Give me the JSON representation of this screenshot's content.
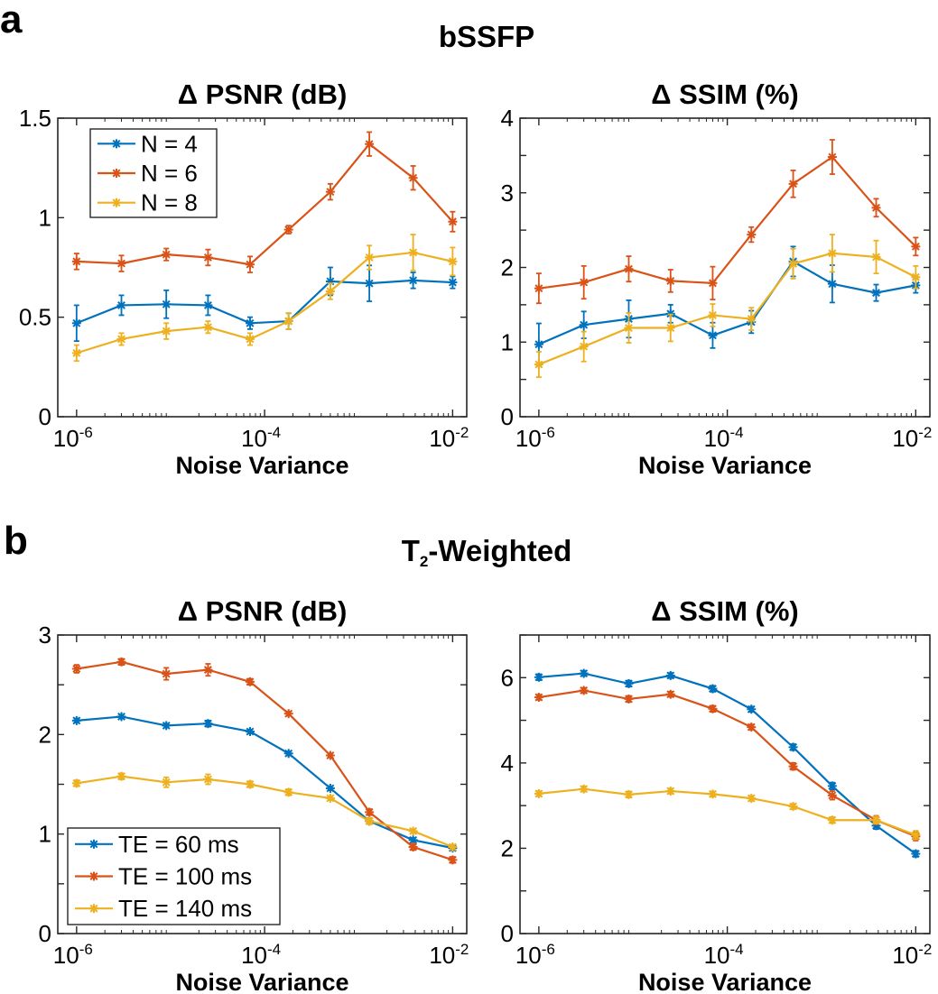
{
  "panels": {
    "a": {
      "letter": "a",
      "title": "bSSFP",
      "title_sub": "",
      "title_rest": ""
    },
    "b": {
      "letter": "b",
      "title": "T",
      "title_sub": "2",
      "title_rest": "-Weighted"
    }
  },
  "colors": {
    "blue": "#0072BD",
    "orange": "#D95319",
    "yellow": "#EDB120"
  },
  "chart_data": [
    {
      "id": "a_psnr",
      "panel": "a",
      "type": "line",
      "title": "Δ PSNR (dB)",
      "xlabel": "Noise Variance",
      "ylabel": "",
      "xscale": "log",
      "x": [
        1e-06,
        3e-06,
        9e-06,
        2.5e-05,
        7e-05,
        0.00018,
        0.0005,
        0.0013,
        0.0038,
        0.01
      ],
      "xlim_exp": [
        -6.2,
        -1.85
      ],
      "xticks": [
        {
          "base": "10",
          "exp": "-6"
        },
        {
          "base": "10",
          "exp": "-4"
        },
        {
          "base": "10",
          "exp": "-2"
        }
      ],
      "xtick_exps": [
        -6,
        -4,
        -2
      ],
      "ylim": [
        0,
        1.5
      ],
      "yticks": [
        0,
        0.5,
        1,
        1.5
      ],
      "ytick_labels": [
        "0",
        "0.5",
        "1",
        "1.5"
      ],
      "minor_yticks": [],
      "legend": {
        "position": "top-left"
      },
      "series": [
        {
          "name": "N = 4",
          "color": "#0072BD",
          "values": [
            0.47,
            0.56,
            0.565,
            0.56,
            0.47,
            0.48,
            0.68,
            0.67,
            0.685,
            0.675
          ],
          "errors": [
            0.09,
            0.05,
            0.07,
            0.05,
            0.03,
            0.04,
            0.07,
            0.09,
            0.04,
            0.03
          ]
        },
        {
          "name": "N = 6",
          "color": "#D95319",
          "values": [
            0.78,
            0.77,
            0.815,
            0.8,
            0.765,
            0.94,
            1.13,
            1.37,
            1.2,
            0.98
          ],
          "errors": [
            0.04,
            0.04,
            0.03,
            0.04,
            0.04,
            0.02,
            0.04,
            0.06,
            0.06,
            0.05
          ]
        },
        {
          "name": "N = 8",
          "color": "#EDB120",
          "values": [
            0.32,
            0.39,
            0.43,
            0.45,
            0.39,
            0.48,
            0.63,
            0.8,
            0.825,
            0.78
          ],
          "errors": [
            0.04,
            0.03,
            0.04,
            0.03,
            0.03,
            0.04,
            0.04,
            0.06,
            0.09,
            0.07
          ]
        }
      ]
    },
    {
      "id": "a_ssim",
      "panel": "a",
      "type": "line",
      "title": "Δ SSIM (%)",
      "xlabel": "Noise Variance",
      "ylabel": "",
      "xscale": "log",
      "x": [
        1e-06,
        3e-06,
        9e-06,
        2.5e-05,
        7e-05,
        0.00018,
        0.0005,
        0.0013,
        0.0038,
        0.01
      ],
      "xlim_exp": [
        -6.2,
        -1.85
      ],
      "xticks": [
        {
          "base": "10",
          "exp": "-6"
        },
        {
          "base": "10",
          "exp": "-4"
        },
        {
          "base": "10",
          "exp": "-2"
        }
      ],
      "xtick_exps": [
        -6,
        -4,
        -2
      ],
      "ylim": [
        0,
        4
      ],
      "yticks": [
        0,
        1,
        2,
        3,
        4
      ],
      "ytick_labels": [
        "0",
        "1",
        "2",
        "3",
        "4"
      ],
      "minor_yticks": [
        0.5,
        1.5,
        2.5,
        3.5
      ],
      "legend": null,
      "series": [
        {
          "name": "N = 4",
          "color": "#0072BD",
          "values": [
            0.97,
            1.23,
            1.31,
            1.38,
            1.09,
            1.27,
            2.08,
            1.78,
            1.66,
            1.76
          ],
          "errors": [
            0.28,
            0.18,
            0.25,
            0.12,
            0.17,
            0.15,
            0.2,
            0.25,
            0.11,
            0.1
          ]
        },
        {
          "name": "N = 6",
          "color": "#D95319",
          "values": [
            1.72,
            1.8,
            1.98,
            1.82,
            1.79,
            2.44,
            3.12,
            3.48,
            2.8,
            2.28
          ],
          "errors": [
            0.2,
            0.22,
            0.17,
            0.15,
            0.22,
            0.1,
            0.18,
            0.23,
            0.12,
            0.12
          ]
        },
        {
          "name": "N = 8",
          "color": "#EDB120",
          "values": [
            0.7,
            0.94,
            1.19,
            1.19,
            1.36,
            1.31,
            2.05,
            2.19,
            2.14,
            1.87
          ],
          "errors": [
            0.17,
            0.2,
            0.2,
            0.18,
            0.15,
            0.15,
            0.2,
            0.25,
            0.22,
            0.15
          ]
        }
      ]
    },
    {
      "id": "b_psnr",
      "panel": "b",
      "type": "line",
      "title": "Δ PSNR (dB)",
      "xlabel": "Noise Variance",
      "ylabel": "",
      "xscale": "log",
      "x": [
        1e-06,
        3e-06,
        9e-06,
        2.5e-05,
        7e-05,
        0.00018,
        0.0005,
        0.0013,
        0.0038,
        0.01
      ],
      "xlim_exp": [
        -6.2,
        -1.85
      ],
      "xticks": [
        {
          "base": "10",
          "exp": "-6"
        },
        {
          "base": "10",
          "exp": "-4"
        },
        {
          "base": "10",
          "exp": "-2"
        }
      ],
      "xtick_exps": [
        -6,
        -4,
        -2
      ],
      "ylim": [
        0,
        3
      ],
      "yticks": [
        0,
        1,
        2,
        3
      ],
      "ytick_labels": [
        "0",
        "1",
        "2",
        "3"
      ],
      "minor_yticks": [
        0.5,
        1.5,
        2.5
      ],
      "legend": {
        "position": "bottom-left"
      },
      "series": [
        {
          "name": "TE = 60 ms",
          "color": "#0072BD",
          "values": [
            2.14,
            2.18,
            2.09,
            2.11,
            2.03,
            1.81,
            1.46,
            1.13,
            0.94,
            0.86
          ],
          "errors": [
            0.02,
            0.02,
            0.02,
            0.03,
            0.02,
            0.02,
            0.02,
            0.03,
            0.02,
            0.02
          ]
        },
        {
          "name": "TE = 100 ms",
          "color": "#D95319",
          "values": [
            2.66,
            2.73,
            2.61,
            2.65,
            2.53,
            2.21,
            1.79,
            1.22,
            0.87,
            0.74
          ],
          "errors": [
            0.04,
            0.03,
            0.06,
            0.06,
            0.03,
            0.02,
            0.02,
            0.03,
            0.03,
            0.03
          ]
        },
        {
          "name": "TE = 140 ms",
          "color": "#EDB120",
          "values": [
            1.51,
            1.58,
            1.52,
            1.55,
            1.5,
            1.42,
            1.36,
            1.13,
            1.03,
            0.87
          ],
          "errors": [
            0.03,
            0.03,
            0.05,
            0.05,
            0.03,
            0.03,
            0.02,
            0.03,
            0.02,
            0.02
          ]
        }
      ]
    },
    {
      "id": "b_ssim",
      "panel": "b",
      "type": "line",
      "title": "Δ SSIM (%)",
      "xlabel": "Noise Variance",
      "ylabel": "",
      "xscale": "log",
      "x": [
        1e-06,
        3e-06,
        9e-06,
        2.5e-05,
        7e-05,
        0.00018,
        0.0005,
        0.0013,
        0.0038,
        0.01
      ],
      "xlim_exp": [
        -6.2,
        -1.85
      ],
      "xticks": [
        {
          "base": "10",
          "exp": "-6"
        },
        {
          "base": "10",
          "exp": "-4"
        },
        {
          "base": "10",
          "exp": "-2"
        }
      ],
      "xtick_exps": [
        -6,
        -4,
        -2
      ],
      "ylim": [
        0,
        7
      ],
      "yticks": [
        0,
        2,
        4,
        6
      ],
      "ytick_labels": [
        "0",
        "2",
        "4",
        "6"
      ],
      "minor_yticks": [
        1,
        3,
        5,
        7
      ],
      "legend": null,
      "series": [
        {
          "name": "TE = 60 ms",
          "color": "#0072BD",
          "values": [
            6.01,
            6.1,
            5.86,
            6.05,
            5.74,
            5.26,
            4.37,
            3.46,
            2.53,
            1.87
          ],
          "errors": [
            0.07,
            0.06,
            0.07,
            0.06,
            0.07,
            0.06,
            0.07,
            0.08,
            0.08,
            0.07
          ]
        },
        {
          "name": "TE = 100 ms",
          "color": "#D95319",
          "values": [
            5.54,
            5.7,
            5.5,
            5.61,
            5.27,
            4.84,
            3.92,
            3.24,
            2.66,
            2.28
          ],
          "errors": [
            0.06,
            0.06,
            0.07,
            0.06,
            0.07,
            0.06,
            0.08,
            0.1,
            0.1,
            0.1
          ]
        },
        {
          "name": "TE = 140 ms",
          "color": "#EDB120",
          "values": [
            3.28,
            3.39,
            3.26,
            3.34,
            3.27,
            3.17,
            2.98,
            2.66,
            2.66,
            2.31
          ],
          "errors": [
            0.06,
            0.06,
            0.07,
            0.06,
            0.06,
            0.06,
            0.06,
            0.07,
            0.08,
            0.1
          ]
        }
      ]
    }
  ]
}
